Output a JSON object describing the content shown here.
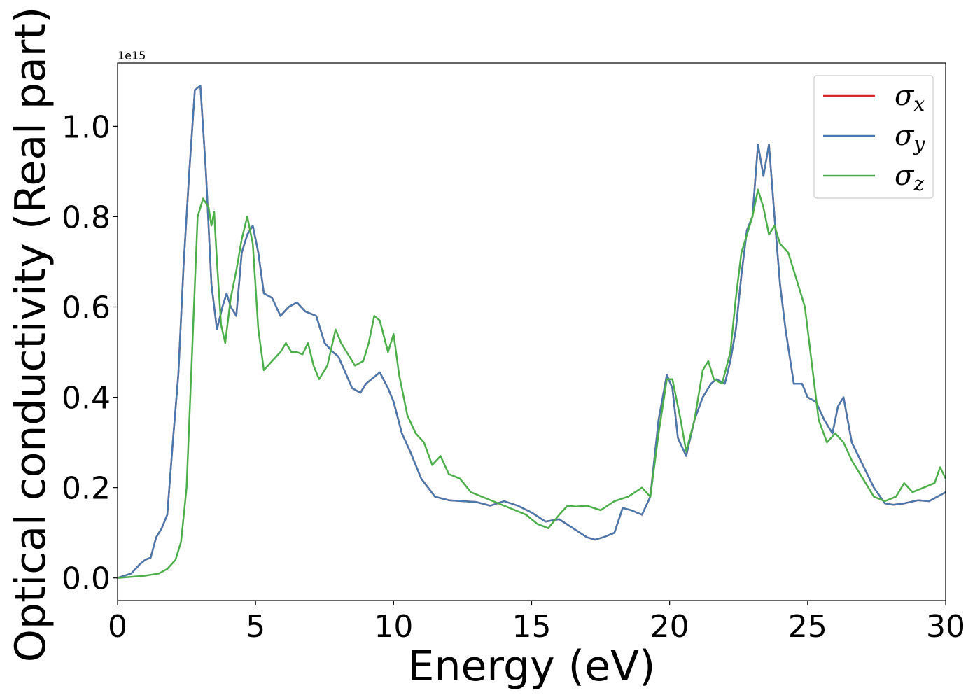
{
  "chart_data": {
    "type": "line",
    "xlabel": "Energy (eV)",
    "ylabel": "Optical conductivity (Real part)",
    "offset_text": "1e15",
    "xlim": [
      0,
      30
    ],
    "ylim": [
      -0.05,
      1.14
    ],
    "xticks": [
      0,
      5,
      10,
      15,
      20,
      25,
      30
    ],
    "xtick_labels": [
      "0",
      "5",
      "10",
      "15",
      "20",
      "25",
      "30"
    ],
    "yticks": [
      0.0,
      0.2,
      0.4,
      0.6,
      0.8,
      1.0
    ],
    "ytick_labels": [
      "0.0",
      "0.2",
      "0.4",
      "0.6",
      "0.8",
      "1.0"
    ],
    "grid": false,
    "legend_position": "top-right",
    "series": [
      {
        "name": "σx",
        "legend_symbol": "σ",
        "legend_sub": "x",
        "color": "#d62728",
        "x": [
          0,
          0.5,
          0.8,
          1.0,
          1.2,
          1.4,
          1.6,
          1.8,
          2.0,
          2.2,
          2.4,
          2.6,
          2.8,
          3.0,
          3.2,
          3.4,
          3.6,
          3.8,
          3.95,
          4.1,
          4.3,
          4.5,
          4.7,
          4.9,
          5.1,
          5.3,
          5.6,
          5.9,
          6.2,
          6.5,
          6.8,
          7.0,
          7.2,
          7.5,
          7.8,
          8.0,
          8.5,
          8.8,
          9.0,
          9.5,
          9.8,
          10.0,
          10.3,
          10.6,
          11.0,
          11.5,
          12.0,
          12.5,
          13.0,
          13.5,
          14.0,
          14.5,
          15.0,
          15.5,
          16.0,
          16.5,
          17.0,
          17.3,
          17.6,
          18.0,
          18.3,
          18.6,
          19.0,
          19.3,
          19.6,
          19.9,
          20.1,
          20.3,
          20.6,
          20.9,
          21.2,
          21.5,
          21.7,
          22.0,
          22.2,
          22.4,
          22.6,
          22.8,
          23.0,
          23.2,
          23.4,
          23.6,
          23.8,
          24.0,
          24.2,
          24.5,
          24.8,
          25.0,
          25.3,
          25.6,
          25.9,
          26.1,
          26.3,
          26.6,
          27.0,
          27.4,
          27.8,
          28.1,
          28.5,
          29.0,
          29.4,
          29.7,
          30.0
        ],
        "y": [
          0.0,
          0.01,
          0.03,
          0.04,
          0.045,
          0.09,
          0.11,
          0.14,
          0.3,
          0.45,
          0.7,
          0.9,
          1.08,
          1.09,
          0.9,
          0.65,
          0.55,
          0.6,
          0.63,
          0.6,
          0.58,
          0.72,
          0.76,
          0.78,
          0.72,
          0.63,
          0.62,
          0.58,
          0.6,
          0.61,
          0.59,
          0.585,
          0.58,
          0.52,
          0.5,
          0.49,
          0.42,
          0.41,
          0.43,
          0.455,
          0.42,
          0.39,
          0.32,
          0.28,
          0.22,
          0.18,
          0.172,
          0.17,
          0.168,
          0.16,
          0.17,
          0.16,
          0.145,
          0.125,
          0.13,
          0.11,
          0.09,
          0.085,
          0.09,
          0.1,
          0.155,
          0.15,
          0.14,
          0.18,
          0.35,
          0.45,
          0.42,
          0.31,
          0.27,
          0.35,
          0.4,
          0.43,
          0.44,
          0.43,
          0.48,
          0.55,
          0.67,
          0.77,
          0.8,
          0.96,
          0.89,
          0.96,
          0.8,
          0.65,
          0.55,
          0.43,
          0.43,
          0.4,
          0.39,
          0.35,
          0.32,
          0.38,
          0.4,
          0.3,
          0.25,
          0.2,
          0.165,
          0.162,
          0.165,
          0.172,
          0.17,
          0.18,
          0.19
        ]
      },
      {
        "name": "σy",
        "legend_symbol": "σ",
        "legend_sub": "y",
        "color": "#4a79ad",
        "x": [
          0,
          0.5,
          0.8,
          1.0,
          1.2,
          1.4,
          1.6,
          1.8,
          2.0,
          2.2,
          2.4,
          2.6,
          2.8,
          3.0,
          3.2,
          3.4,
          3.6,
          3.8,
          3.95,
          4.1,
          4.3,
          4.5,
          4.7,
          4.9,
          5.1,
          5.3,
          5.6,
          5.9,
          6.2,
          6.5,
          6.8,
          7.0,
          7.2,
          7.5,
          7.8,
          8.0,
          8.5,
          8.8,
          9.0,
          9.5,
          9.8,
          10.0,
          10.3,
          10.6,
          11.0,
          11.5,
          12.0,
          12.5,
          13.0,
          13.5,
          14.0,
          14.5,
          15.0,
          15.5,
          16.0,
          16.5,
          17.0,
          17.3,
          17.6,
          18.0,
          18.3,
          18.6,
          19.0,
          19.3,
          19.6,
          19.9,
          20.1,
          20.3,
          20.6,
          20.9,
          21.2,
          21.5,
          21.7,
          22.0,
          22.2,
          22.4,
          22.6,
          22.8,
          23.0,
          23.2,
          23.4,
          23.6,
          23.8,
          24.0,
          24.2,
          24.5,
          24.8,
          25.0,
          25.3,
          25.6,
          25.9,
          26.1,
          26.3,
          26.6,
          27.0,
          27.4,
          27.8,
          28.1,
          28.5,
          29.0,
          29.4,
          29.7,
          30.0
        ],
        "y": [
          0.0,
          0.01,
          0.03,
          0.04,
          0.045,
          0.09,
          0.11,
          0.14,
          0.3,
          0.45,
          0.7,
          0.9,
          1.08,
          1.09,
          0.9,
          0.65,
          0.55,
          0.6,
          0.63,
          0.6,
          0.58,
          0.72,
          0.76,
          0.78,
          0.72,
          0.63,
          0.62,
          0.58,
          0.6,
          0.61,
          0.59,
          0.585,
          0.58,
          0.52,
          0.5,
          0.49,
          0.42,
          0.41,
          0.43,
          0.455,
          0.42,
          0.39,
          0.32,
          0.28,
          0.22,
          0.18,
          0.172,
          0.17,
          0.168,
          0.16,
          0.17,
          0.16,
          0.145,
          0.125,
          0.13,
          0.11,
          0.09,
          0.085,
          0.09,
          0.1,
          0.155,
          0.15,
          0.14,
          0.18,
          0.35,
          0.45,
          0.42,
          0.31,
          0.27,
          0.35,
          0.4,
          0.43,
          0.44,
          0.43,
          0.48,
          0.55,
          0.67,
          0.77,
          0.8,
          0.96,
          0.89,
          0.96,
          0.8,
          0.65,
          0.55,
          0.43,
          0.43,
          0.4,
          0.39,
          0.35,
          0.32,
          0.38,
          0.4,
          0.3,
          0.25,
          0.2,
          0.165,
          0.162,
          0.165,
          0.172,
          0.17,
          0.18,
          0.19
        ]
      },
      {
        "name": "σz",
        "legend_symbol": "σ",
        "legend_sub": "z",
        "color": "#4daf4a",
        "x": [
          0,
          1.0,
          1.5,
          1.8,
          2.1,
          2.3,
          2.5,
          2.7,
          2.9,
          3.1,
          3.3,
          3.4,
          3.5,
          3.6,
          3.75,
          3.9,
          4.1,
          4.3,
          4.5,
          4.7,
          4.9,
          5.1,
          5.3,
          5.6,
          5.9,
          6.1,
          6.3,
          6.5,
          6.7,
          6.9,
          7.1,
          7.3,
          7.6,
          7.9,
          8.1,
          8.3,
          8.6,
          8.9,
          9.1,
          9.3,
          9.5,
          9.8,
          10.0,
          10.2,
          10.5,
          10.8,
          11.1,
          11.4,
          11.7,
          12.0,
          12.4,
          12.8,
          13.2,
          13.6,
          14.0,
          14.4,
          14.8,
          15.2,
          15.6,
          16.0,
          16.3,
          16.6,
          17.0,
          17.5,
          18.0,
          18.5,
          19.0,
          19.3,
          19.6,
          19.9,
          20.1,
          20.4,
          20.6,
          20.9,
          21.2,
          21.4,
          21.6,
          21.9,
          22.2,
          22.4,
          22.6,
          22.8,
          23.0,
          23.2,
          23.4,
          23.6,
          23.8,
          24.0,
          24.3,
          24.6,
          24.9,
          25.1,
          25.4,
          25.7,
          26.0,
          26.3,
          26.6,
          27.0,
          27.4,
          27.8,
          28.2,
          28.5,
          28.8,
          29.2,
          29.6,
          29.8,
          30.0
        ],
        "y": [
          0.0,
          0.005,
          0.01,
          0.02,
          0.04,
          0.08,
          0.2,
          0.5,
          0.8,
          0.84,
          0.82,
          0.78,
          0.81,
          0.7,
          0.56,
          0.52,
          0.62,
          0.68,
          0.75,
          0.8,
          0.74,
          0.55,
          0.46,
          0.48,
          0.5,
          0.52,
          0.5,
          0.5,
          0.495,
          0.52,
          0.47,
          0.44,
          0.47,
          0.55,
          0.52,
          0.5,
          0.47,
          0.48,
          0.52,
          0.58,
          0.57,
          0.5,
          0.54,
          0.45,
          0.36,
          0.32,
          0.3,
          0.25,
          0.27,
          0.23,
          0.22,
          0.19,
          0.18,
          0.17,
          0.16,
          0.15,
          0.14,
          0.12,
          0.11,
          0.14,
          0.16,
          0.158,
          0.16,
          0.15,
          0.17,
          0.18,
          0.2,
          0.18,
          0.32,
          0.44,
          0.44,
          0.35,
          0.28,
          0.35,
          0.46,
          0.48,
          0.44,
          0.43,
          0.5,
          0.62,
          0.72,
          0.76,
          0.8,
          0.86,
          0.82,
          0.76,
          0.78,
          0.74,
          0.72,
          0.66,
          0.6,
          0.5,
          0.35,
          0.3,
          0.32,
          0.3,
          0.26,
          0.22,
          0.18,
          0.17,
          0.18,
          0.21,
          0.19,
          0.2,
          0.21,
          0.245,
          0.22
        ]
      }
    ]
  }
}
